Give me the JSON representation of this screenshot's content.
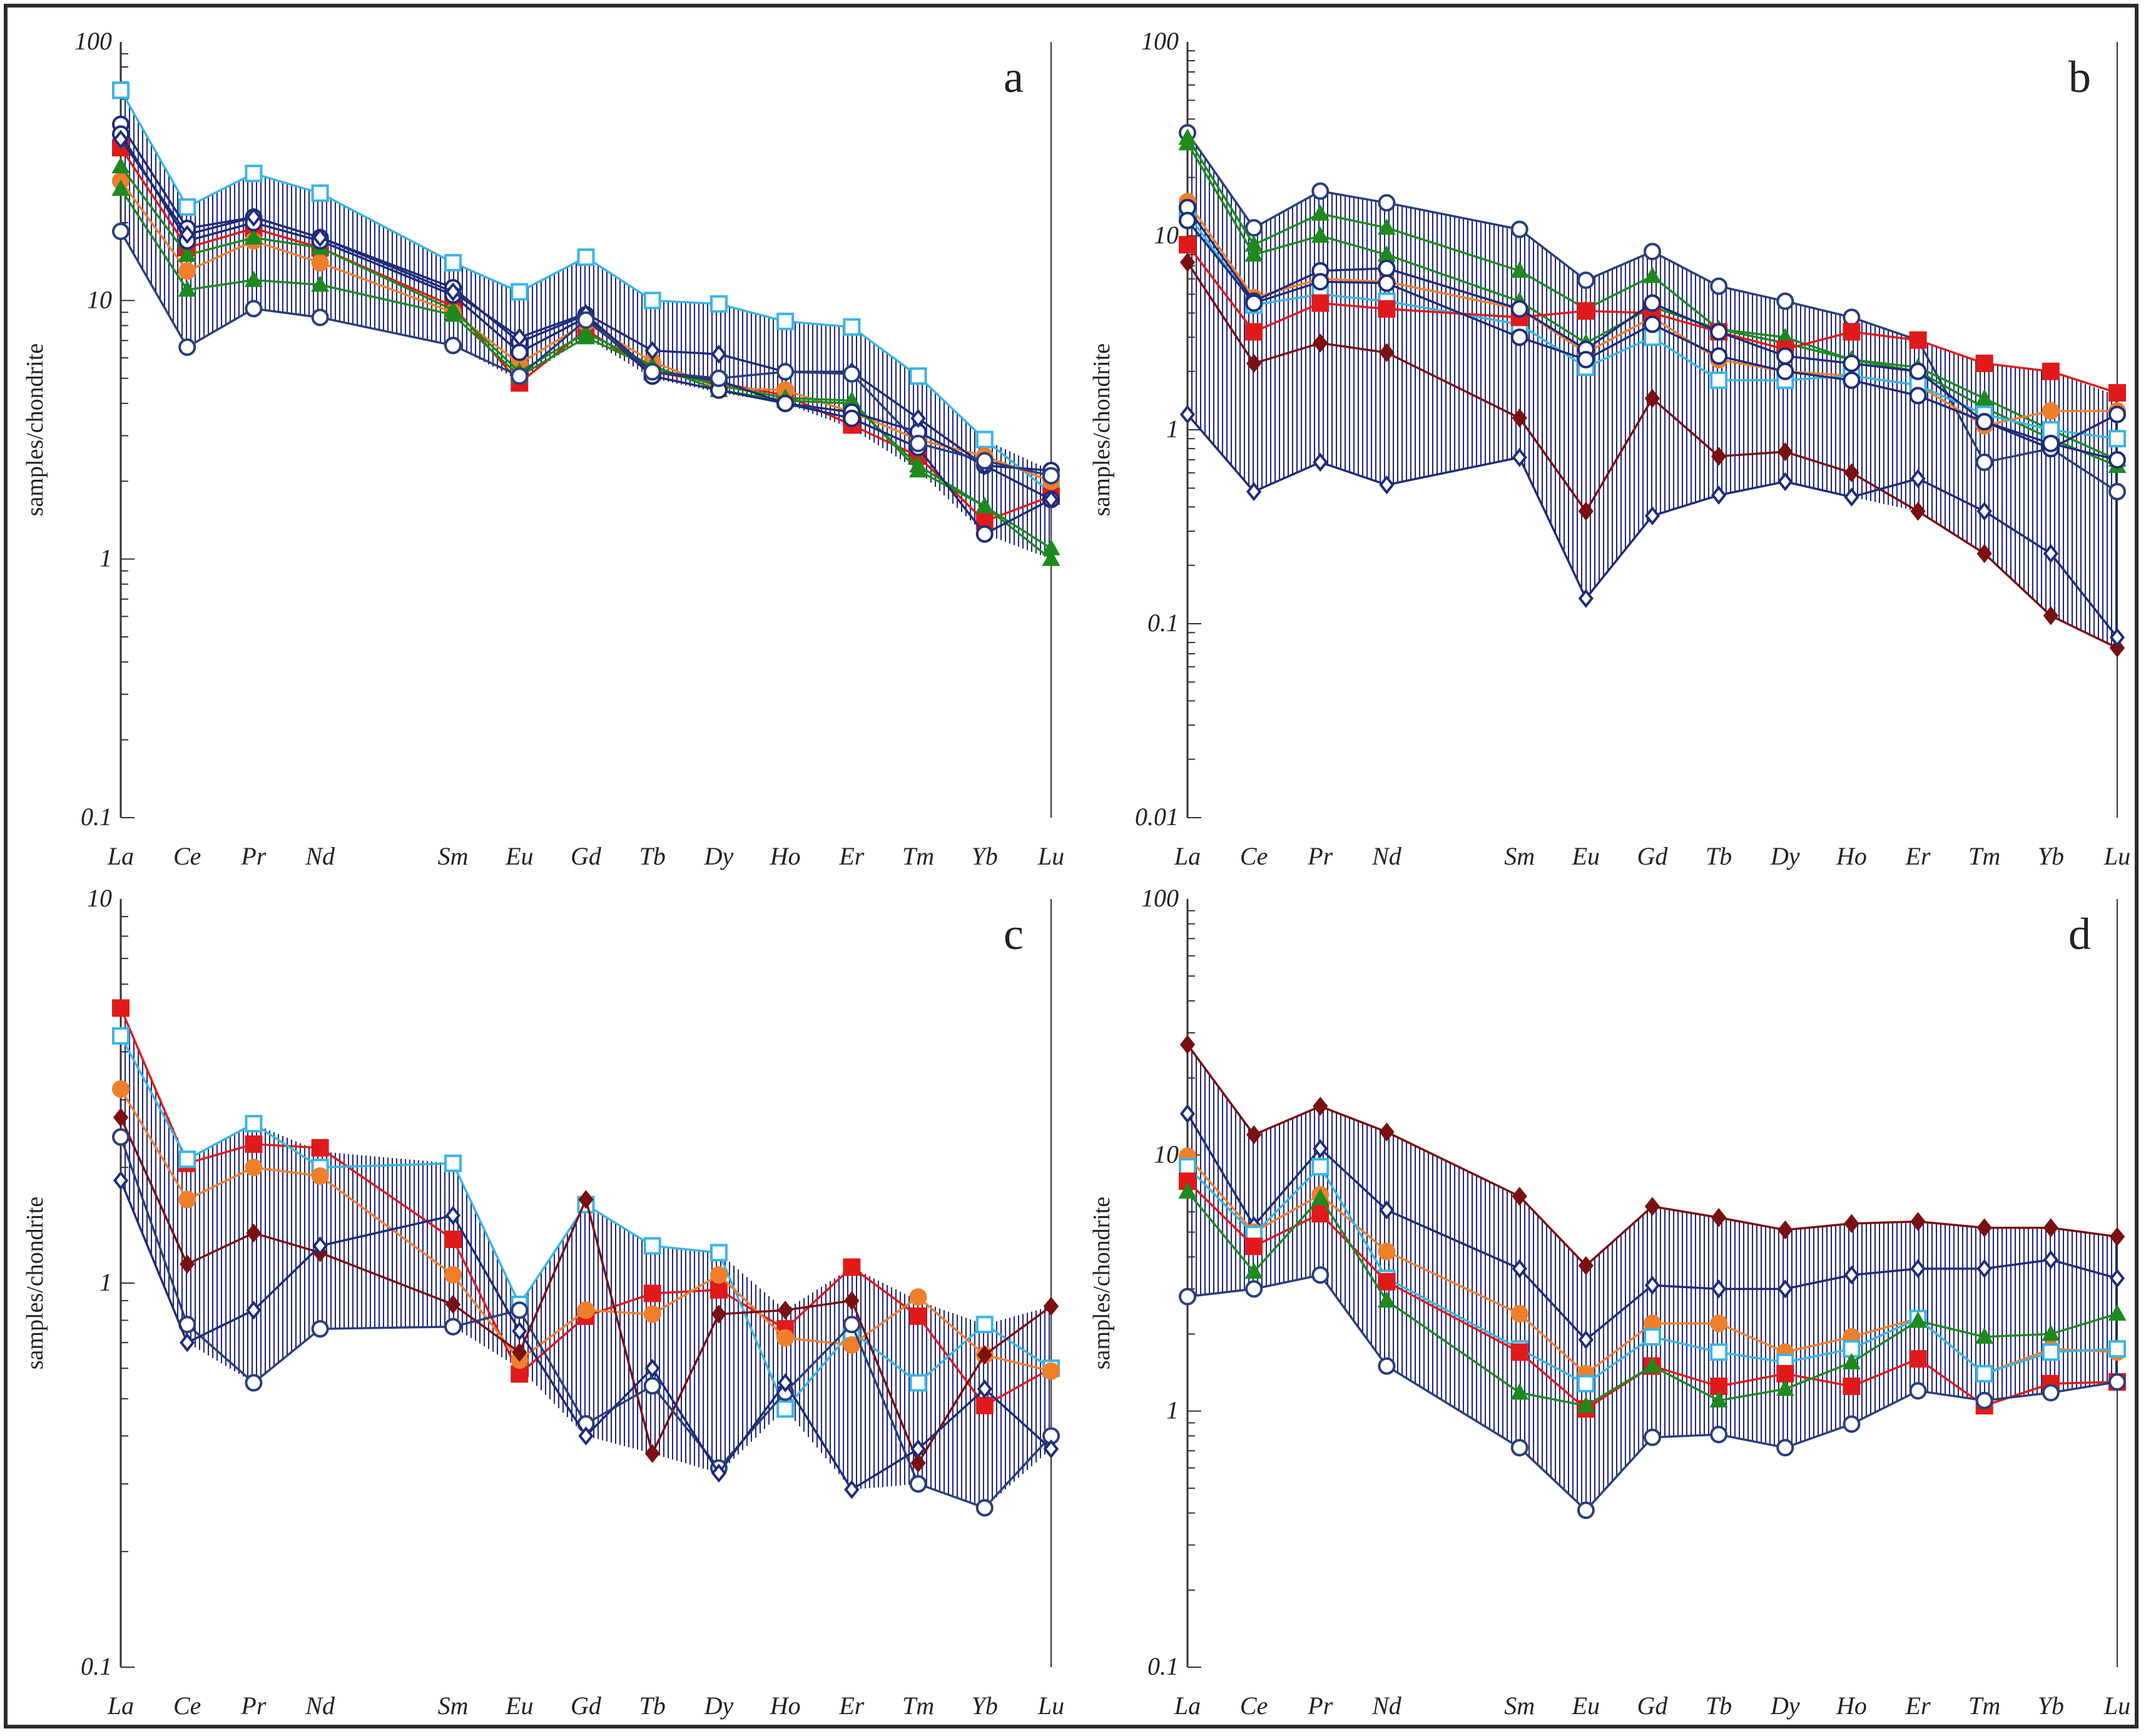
{
  "chart_data": [
    {
      "panel": "a",
      "type": "line",
      "scale": "log",
      "ylim": [
        0.1,
        100
      ],
      "y_ticks": [
        0.1,
        1,
        10,
        100
      ],
      "y_tick_labels": [
        "0.1",
        "1",
        "10",
        "100"
      ],
      "ylabel": "samples/chondrite",
      "categories": [
        "La",
        "Ce",
        "Pr",
        "Nd",
        "Sm",
        "Eu",
        "Gd",
        "Tb",
        "Dy",
        "Ho",
        "Er",
        "Tm",
        "Yb",
        "Lu"
      ],
      "band": {
        "upper": [
          65,
          23,
          31,
          26,
          14,
          10.8,
          14.7,
          10,
          9.7,
          8.3,
          7.9,
          5.1,
          2.9,
          2.2
        ],
        "lower": [
          18.5,
          6.6,
          9.3,
          8.6,
          6.7,
          4.9,
          7.2,
          5.0,
          4.4,
          4.0,
          3.2,
          2.2,
          1.25,
          1.0
        ]
      },
      "series": [
        {
          "name": "s1",
          "color": "#39b4e6",
          "marker": "square-open",
          "values": [
            65,
            23,
            31,
            26,
            14,
            10.8,
            14.7,
            10,
            9.7,
            8.3,
            7.9,
            5.1,
            2.9,
            1.8
          ]
        },
        {
          "name": "s2",
          "color": "#e01a1a",
          "marker": "square-filled",
          "values": [
            39,
            16,
            19,
            16,
            9.5,
            4.8,
            7.7,
            5.3,
            4.8,
            4.3,
            3.3,
            2.5,
            1.4,
            1.75
          ]
        },
        {
          "name": "s3",
          "color": "#f07f2a",
          "marker": "circle-filled",
          "values": [
            29,
            13,
            17,
            14,
            9,
            5.7,
            8.2,
            5.8,
            4.6,
            4.5,
            3.7,
            2.9,
            2.5,
            2.0
          ]
        },
        {
          "name": "s4",
          "color": "#1e8a1e",
          "marker": "triangle-filled",
          "values": [
            33,
            15,
            17.5,
            16,
            9.2,
            5.3,
            7.5,
            5.6,
            4.5,
            4.1,
            4.0,
            2.3,
            1.6,
            1.0
          ]
        },
        {
          "name": "s5",
          "color": "#1e8a1e",
          "marker": "triangle-filled",
          "values": [
            27,
            11,
            12,
            11.5,
            8.8,
            5.1,
            7.2,
            5.5,
            4.7,
            4.2,
            4.1,
            2.2,
            1.6,
            1.1
          ]
        },
        {
          "name": "s6",
          "color": "#1f2c7a",
          "marker": "circle-open",
          "values": [
            48,
            19,
            21,
            17.5,
            11.2,
            6.9,
            8.8,
            5.3,
            4.9,
            4.0,
            3.7,
            3.1,
            2.3,
            2.2
          ]
        },
        {
          "name": "s7",
          "color": "#1f2c7a",
          "marker": "circle-open",
          "values": [
            44,
            17,
            20,
            17,
            10.5,
            6.3,
            8.6,
            5.1,
            4.5,
            4.0,
            3.5,
            2.7,
            1.25,
            1.7
          ]
        },
        {
          "name": "s8",
          "color": "#1f2c7a",
          "marker": "diamond-open",
          "values": [
            42,
            18,
            21,
            17.5,
            10.8,
            7.2,
            8.9,
            6.4,
            6.2,
            5.3,
            5.3,
            3.5,
            2.3,
            1.7
          ]
        },
        {
          "name": "s9",
          "color": "#2a3f7a",
          "marker": "circle-open",
          "values": [
            18.5,
            6.6,
            9.3,
            8.6,
            6.7,
            5.1,
            8.4,
            5.3,
            5.0,
            5.3,
            5.2,
            2.8,
            2.4,
            2.1
          ]
        }
      ]
    },
    {
      "panel": "b",
      "type": "line",
      "scale": "log",
      "ylim": [
        0.01,
        100
      ],
      "y_ticks": [
        0.01,
        0.1,
        1,
        10,
        100
      ],
      "y_tick_labels": [
        "0.01",
        "0.1",
        "1",
        "10",
        "100"
      ],
      "ylabel": "samples/chondrite",
      "categories": [
        "La",
        "Ce",
        "Pr",
        "Nd",
        "Sm",
        "Eu",
        "Gd",
        "Tb",
        "Dy",
        "Ho",
        "Er",
        "Tm",
        "Yb",
        "Lu"
      ],
      "band": {
        "upper": [
          34,
          11,
          17,
          14.8,
          10.8,
          5.9,
          8.3,
          5.5,
          4.6,
          3.8,
          2.9,
          2.2,
          2.0,
          1.5
        ],
        "lower": [
          1.2,
          0.48,
          0.68,
          0.52,
          0.72,
          0.135,
          0.36,
          0.46,
          0.54,
          0.45,
          0.38,
          0.23,
          0.11,
          0.075
        ]
      },
      "series": [
        {
          "name": "s1",
          "color": "#2a3f7a",
          "marker": "circle-open",
          "values": [
            34,
            11,
            17,
            14.8,
            10.8,
            5.9,
            8.3,
            5.5,
            4.6,
            3.8,
            2.9,
            0.68,
            0.8,
            0.48
          ]
        },
        {
          "name": "s2",
          "color": "#1e8a1e",
          "marker": "triangle-filled",
          "values": [
            32,
            9,
            13,
            11,
            6.6,
            4.2,
            6.2,
            3.3,
            3.0,
            2.3,
            2.1,
            1.45,
            1.0,
            0.7
          ]
        },
        {
          "name": "s3",
          "color": "#1e8a1e",
          "marker": "triangle-filled",
          "values": [
            30,
            8,
            10,
            8,
            4.6,
            2.8,
            4.3,
            3.3,
            2.8,
            2.3,
            2.0,
            1.3,
            0.9,
            0.65
          ]
        },
        {
          "name": "s4",
          "color": "#f07f2a",
          "marker": "circle-filled",
          "values": [
            15,
            4.8,
            6,
            5.8,
            4.2,
            2.5,
            3.8,
            2.3,
            2.0,
            1.9,
            1.7,
            1.05,
            1.25,
            1.25
          ]
        },
        {
          "name": "s5",
          "color": "#39b4e6",
          "marker": "square-open",
          "values": [
            13,
            4.4,
            5.0,
            4.6,
            3.5,
            2.1,
            3.0,
            1.8,
            1.8,
            1.9,
            1.7,
            1.2,
            1.0,
            0.9
          ]
        },
        {
          "name": "s6",
          "color": "#e01a1a",
          "marker": "square-filled",
          "values": [
            9,
            3.2,
            4.5,
            4.2,
            3.8,
            4.1,
            4.0,
            3.2,
            2.6,
            3.2,
            2.9,
            2.2,
            2.0,
            1.55
          ]
        },
        {
          "name": "s7",
          "color": "#1f2c7a",
          "marker": "circle-open",
          "values": [
            14,
            4.6,
            6.6,
            6.8,
            4.2,
            2.6,
            4.5,
            3.2,
            2.4,
            2.2,
            2.0,
            1.1,
            0.8,
            1.2
          ]
        },
        {
          "name": "s8",
          "color": "#1f2c7a",
          "marker": "circle-open",
          "values": [
            12,
            4.5,
            5.8,
            5.7,
            3.0,
            2.3,
            3.5,
            2.4,
            2.0,
            1.8,
            1.5,
            1.1,
            0.85,
            0.7
          ]
        },
        {
          "name": "s9",
          "color": "#7a1010",
          "marker": "diamond-filled",
          "values": [
            7.3,
            2.2,
            2.8,
            2.5,
            1.15,
            0.38,
            1.45,
            0.73,
            0.77,
            0.6,
            0.38,
            0.23,
            0.11,
            0.075
          ]
        },
        {
          "name": "s10",
          "color": "#1f2c7a",
          "marker": "diamond-open",
          "values": [
            1.2,
            0.48,
            0.68,
            0.52,
            0.72,
            0.135,
            0.36,
            0.46,
            0.54,
            0.45,
            0.56,
            0.38,
            0.23,
            0.085
          ]
        }
      ]
    },
    {
      "panel": "c",
      "type": "line",
      "scale": "log",
      "ylim": [
        0.1,
        10
      ],
      "y_ticks": [
        0.1,
        1,
        10
      ],
      "y_tick_labels": [
        "0.1",
        "1",
        "10"
      ],
      "ylabel": "samples/chondrite",
      "categories": [
        "La",
        "Ce",
        "Pr",
        "Nd",
        "Sm",
        "Eu",
        "Gd",
        "Tb",
        "Dy",
        "Ho",
        "Er",
        "Tm",
        "Yb",
        "Lu"
      ],
      "band": {
        "upper": [
          5.2,
          2.1,
          2.6,
          2.2,
          2.05,
          0.88,
          1.6,
          1.25,
          1.2,
          0.85,
          1.1,
          0.9,
          0.78,
          0.87
        ],
        "lower": [
          1.85,
          0.7,
          0.55,
          0.76,
          0.77,
          0.6,
          0.4,
          0.36,
          0.32,
          0.47,
          0.29,
          0.3,
          0.26,
          0.37
        ]
      },
      "series": [
        {
          "name": "s1",
          "color": "#e01a1a",
          "marker": "square-filled",
          "values": [
            5.2,
            2.05,
            2.3,
            2.25,
            1.3,
            0.58,
            0.82,
            0.94,
            0.96,
            0.76,
            1.1,
            0.82,
            0.48,
            0.6
          ]
        },
        {
          "name": "s2",
          "color": "#39b4e6",
          "marker": "square-open",
          "values": [
            4.4,
            2.1,
            2.6,
            2.0,
            2.05,
            0.88,
            1.6,
            1.25,
            1.2,
            0.47,
            0.75,
            0.55,
            0.78,
            0.6
          ]
        },
        {
          "name": "s3",
          "color": "#f07f2a",
          "marker": "circle-filled",
          "values": [
            3.2,
            1.65,
            2.0,
            1.9,
            1.05,
            0.63,
            0.85,
            0.83,
            1.05,
            0.72,
            0.69,
            0.92,
            0.65,
            0.59
          ]
        },
        {
          "name": "s4",
          "color": "#7a1010",
          "marker": "diamond-filled",
          "values": [
            2.7,
            1.12,
            1.35,
            1.2,
            0.88,
            0.66,
            1.65,
            0.36,
            0.83,
            0.85,
            0.9,
            0.34,
            0.65,
            0.87
          ]
        },
        {
          "name": "s5",
          "color": "#2a3f7a",
          "marker": "circle-open",
          "values": [
            2.4,
            0.78,
            0.55,
            0.76,
            0.77,
            0.85,
            0.43,
            0.54,
            0.33,
            0.52,
            0.78,
            0.3,
            0.26,
            0.4
          ]
        },
        {
          "name": "s6",
          "color": "#1f2c7a",
          "marker": "diamond-open",
          "values": [
            1.85,
            0.7,
            0.85,
            1.25,
            1.5,
            0.75,
            0.4,
            0.6,
            0.32,
            0.55,
            0.29,
            0.37,
            0.53,
            0.37
          ]
        }
      ]
    },
    {
      "panel": "d",
      "type": "line",
      "scale": "log",
      "ylim": [
        0.1,
        100
      ],
      "y_ticks": [
        0.1,
        1,
        10,
        100
      ],
      "y_tick_labels": [
        "0.1",
        "1",
        "10",
        "100"
      ],
      "ylabel": "samples/chondrite",
      "categories": [
        "La",
        "Ce",
        "Pr",
        "Nd",
        "Sm",
        "Eu",
        "Gd",
        "Tb",
        "Dy",
        "Ho",
        "Er",
        "Tm",
        "Yb",
        "Lu"
      ],
      "band": {
        "upper": [
          27,
          12,
          15.5,
          12.3,
          6.9,
          3.7,
          6.3,
          5.7,
          5.1,
          5.4,
          5.5,
          5.2,
          5.2,
          4.8
        ],
        "lower": [
          2.8,
          3.0,
          3.4,
          1.5,
          0.72,
          0.41,
          0.79,
          0.81,
          0.72,
          0.89,
          1.2,
          1.1,
          1.18,
          1.3
        ]
      },
      "series": [
        {
          "name": "s1",
          "color": "#7a1010",
          "marker": "diamond-filled",
          "values": [
            27,
            12,
            15.5,
            12.3,
            6.9,
            3.7,
            6.3,
            5.7,
            5.1,
            5.4,
            5.5,
            5.2,
            5.2,
            4.8
          ]
        },
        {
          "name": "s2",
          "color": "#1f2c7a",
          "marker": "diamond-open",
          "values": [
            14.5,
            5.3,
            10.6,
            6.1,
            3.6,
            1.9,
            3.1,
            3.0,
            3.0,
            3.4,
            3.6,
            3.6,
            3.9,
            3.3
          ]
        },
        {
          "name": "s3",
          "color": "#f07f2a",
          "marker": "circle-filled",
          "values": [
            9.9,
            5.0,
            7.0,
            4.2,
            2.4,
            1.4,
            2.2,
            2.2,
            1.7,
            1.95,
            2.3,
            1.4,
            1.75,
            1.7
          ]
        },
        {
          "name": "s4",
          "color": "#39b4e6",
          "marker": "square-open",
          "values": [
            9.0,
            4.9,
            9.0,
            3.3,
            1.75,
            1.28,
            1.95,
            1.7,
            1.55,
            1.75,
            2.3,
            1.4,
            1.7,
            1.75
          ]
        },
        {
          "name": "s5",
          "color": "#e01a1a",
          "marker": "square-filled",
          "values": [
            7.9,
            4.4,
            5.9,
            3.2,
            1.7,
            1.02,
            1.5,
            1.25,
            1.4,
            1.25,
            1.6,
            1.05,
            1.28,
            1.3
          ]
        },
        {
          "name": "s6",
          "color": "#1e8a1e",
          "marker": "triangle-filled",
          "values": [
            7.2,
            3.5,
            6.8,
            2.7,
            1.18,
            1.05,
            1.5,
            1.1,
            1.22,
            1.55,
            2.25,
            1.95,
            2.0,
            2.4
          ]
        },
        {
          "name": "s7",
          "color": "#2a3f7a",
          "marker": "circle-open",
          "values": [
            2.8,
            3.0,
            3.4,
            1.5,
            0.72,
            0.41,
            0.79,
            0.81,
            0.72,
            0.89,
            1.2,
            1.1,
            1.18,
            1.3
          ]
        }
      ]
    }
  ]
}
